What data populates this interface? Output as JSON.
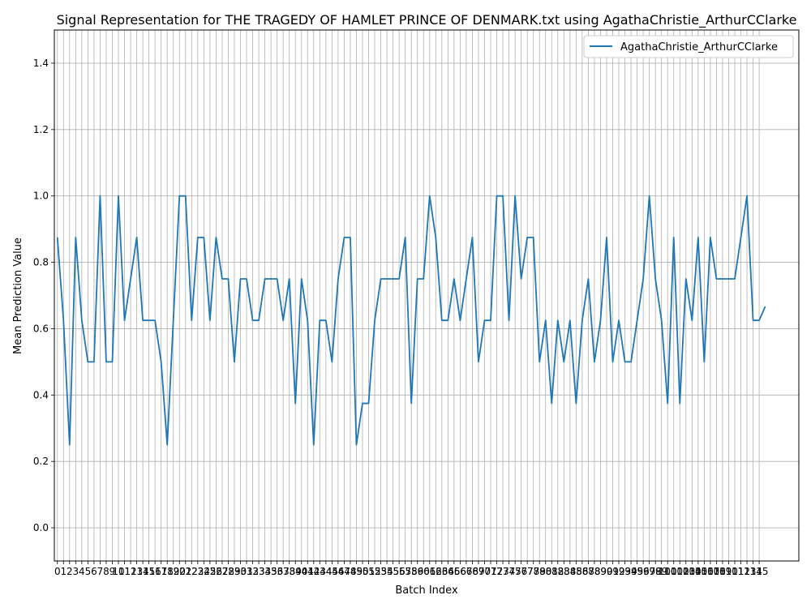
{
  "chart_data": {
    "type": "line",
    "title": "Signal Representation for THE TRAGEDY OF HAMLET PRINCE OF DENMARK.txt using AgathaChristie_ArthurCClarke",
    "xlabel": "Batch Index",
    "ylabel": "Mean Prediction Value",
    "xlim": [
      -0.5,
      121.5
    ],
    "ylim": [
      -0.1,
      1.5
    ],
    "yticks": [
      0.0,
      0.2,
      0.4,
      0.6,
      0.8,
      1.0,
      1.2,
      1.4
    ],
    "ytick_labels": [
      "0.0",
      "0.2",
      "0.4",
      "0.6",
      "0.8",
      "1.0",
      "1.2",
      "1.4"
    ],
    "xtick_count": 116,
    "grid": true,
    "legend_position": "upper right",
    "series": [
      {
        "name": "AgathaChristie_ArthurCClarke",
        "color": "#1f77b4",
        "values": [
          0.875,
          0.625,
          0.25,
          0.875,
          0.625,
          0.5,
          0.5,
          1.0,
          0.5,
          0.5,
          1.0,
          0.625,
          0.75,
          0.875,
          0.625,
          0.625,
          0.625,
          0.5,
          0.25,
          0.625,
          1.0,
          1.0,
          0.625,
          0.875,
          0.875,
          0.625,
          0.875,
          0.75,
          0.75,
          0.5,
          0.75,
          0.75,
          0.625,
          0.625,
          0.75,
          0.75,
          0.75,
          0.625,
          0.75,
          0.375,
          0.75,
          0.625,
          0.25,
          0.625,
          0.625,
          0.5,
          0.75,
          0.875,
          0.875,
          0.25,
          0.375,
          0.375,
          0.625,
          0.75,
          0.75,
          0.75,
          0.75,
          0.875,
          0.375,
          0.75,
          0.75,
          1.0,
          0.875,
          0.625,
          0.625,
          0.75,
          0.625,
          0.75,
          0.875,
          0.5,
          0.625,
          0.625,
          1.0,
          1.0,
          0.625,
          1.0,
          0.75,
          0.875,
          0.875,
          0.5,
          0.625,
          0.375,
          0.625,
          0.5,
          0.625,
          0.375,
          0.625,
          0.75,
          0.5,
          0.625,
          0.875,
          0.5,
          0.625,
          0.5,
          0.5,
          0.625,
          0.75,
          1.0,
          0.75,
          0.625,
          0.375,
          0.875,
          0.375,
          0.75,
          0.625,
          0.875,
          0.5,
          0.875,
          0.75,
          0.75,
          0.75,
          0.75,
          0.875,
          1.0,
          0.625,
          0.625,
          0.667
        ]
      }
    ]
  }
}
